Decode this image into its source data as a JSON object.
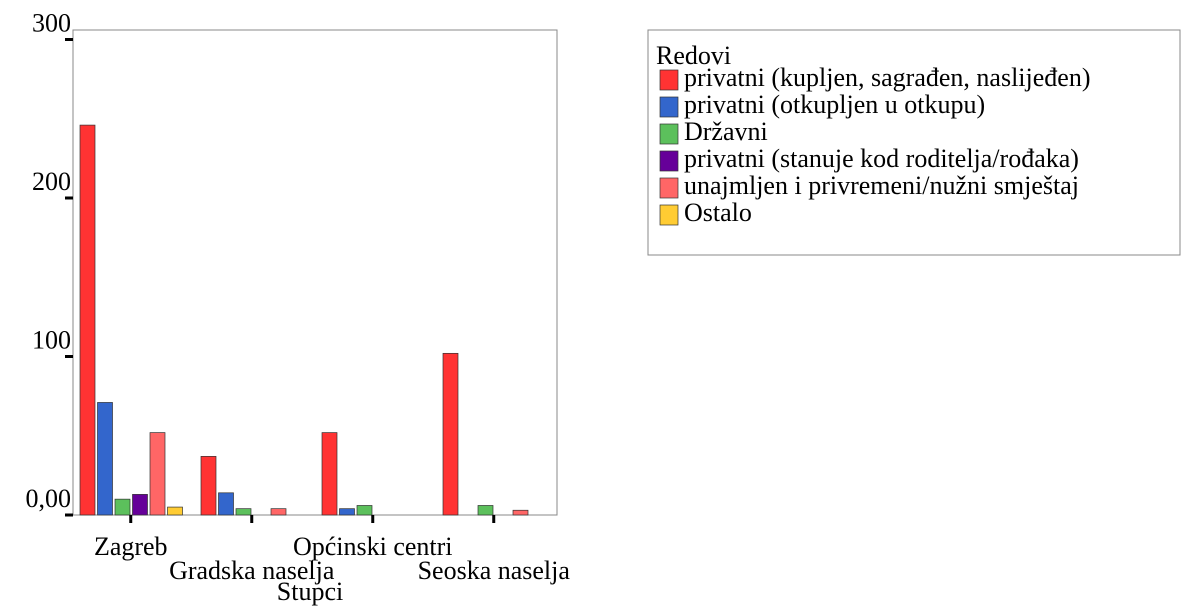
{
  "chart_data": {
    "type": "bar",
    "x_label": "Stupci",
    "legend_title": "Redovi",
    "categories": [
      "Zagreb",
      "Gradska naselja",
      "Općinski centri",
      "Seoska naselja"
    ],
    "series": [
      {
        "name": "privatni (kupljen, sagrađen, naslijeđen)",
        "color": "#ff3333",
        "values": [
          246,
          37,
          52,
          102
        ]
      },
      {
        "name": "privatni (otkupljen u otkupu)",
        "color": "#3366cc",
        "values": [
          71,
          14,
          4,
          0
        ]
      },
      {
        "name": "Državni",
        "color": "#5cc05c",
        "values": [
          10,
          4,
          6,
          6
        ]
      },
      {
        "name": "privatni (stanuje kod roditelja/rođaka)",
        "color": "#660099",
        "values": [
          13,
          0,
          0,
          0
        ]
      },
      {
        "name": "unajmljen i privremeni/nužni smještaj",
        "color": "#ff6666",
        "values": [
          52,
          4,
          0,
          3
        ]
      },
      {
        "name": "Ostalo",
        "color": "#ffcc33",
        "values": [
          5,
          0,
          0,
          0
        ]
      }
    ],
    "ylim": [
      0,
      306
    ],
    "yticks": [
      {
        "value": 0,
        "label": "0,00"
      },
      100,
      200,
      300
    ]
  }
}
